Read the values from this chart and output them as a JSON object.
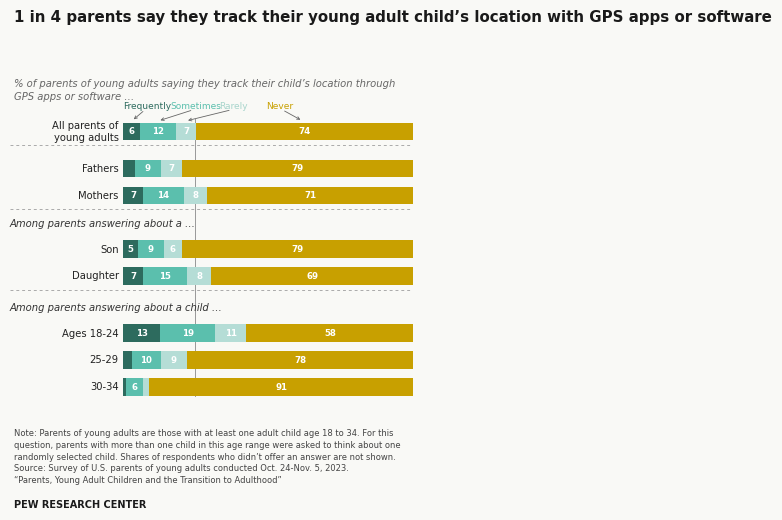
{
  "title": "1 in 4 parents say they track their young adult child’s location with GPS apps or software",
  "subtitle": "% of parents of young adults saying they track their child’s location through\nGPS apps or software …",
  "categories": [
    "All parents of\nyoung adults",
    "Fathers",
    "Mothers",
    "Son",
    "Daughter",
    "Ages 18-24",
    "25-29",
    "30-34"
  ],
  "values": [
    [
      6,
      12,
      7,
      74
    ],
    [
      4,
      9,
      7,
      79
    ],
    [
      7,
      14,
      8,
      71
    ],
    [
      5,
      9,
      6,
      79
    ],
    [
      7,
      15,
      8,
      69
    ],
    [
      13,
      19,
      11,
      58
    ],
    [
      3,
      10,
      9,
      78
    ],
    [
      1,
      6,
      2,
      91
    ]
  ],
  "colors": [
    "#2d6b5e",
    "#5bbfad",
    "#b5ddd6",
    "#c8a000"
  ],
  "legend_labels": [
    "Frequently",
    "Sometimes",
    "Rarely",
    "Never"
  ],
  "legend_colors": [
    "#2d6b5e",
    "#5bbfad",
    "#a8d5cc",
    "#c8a000"
  ],
  "section1_label": "Among parents answering about a …",
  "section2_label": "Among parents answering about a child …",
  "note": "Note: Parents of young adults are those with at least one adult child age 18 to 34. For this\nquestion, parents with more than one child in this age range were asked to think about one\nrandomly selected child. Shares of respondents who didn’t offer an answer are not shown.\nSource: Survey of U.S. parents of young adults conducted Oct. 24-Nov. 5, 2023.\n“Parents, Young Adult Children and the Transition to Adulthood”",
  "footer": "PEW RESEARCH CENTER",
  "bg_color": "#f9f9f6"
}
